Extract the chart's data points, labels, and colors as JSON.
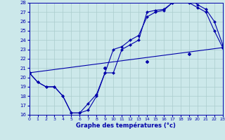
{
  "xlabel": "Graphe des températures (°c)",
  "xlim": [
    0,
    23
  ],
  "ylim": [
    16,
    28
  ],
  "xticks": [
    0,
    1,
    2,
    3,
    4,
    5,
    6,
    7,
    8,
    9,
    10,
    11,
    12,
    13,
    14,
    15,
    16,
    17,
    18,
    19,
    20,
    21,
    22,
    23
  ],
  "yticks": [
    16,
    17,
    18,
    19,
    20,
    21,
    22,
    23,
    24,
    25,
    26,
    27,
    28
  ],
  "bg_color": "#cce8ea",
  "line_color": "#0000aa",
  "grid_color": "#aacccc",
  "line1_x": [
    0,
    1,
    2,
    3,
    4,
    5,
    6,
    7,
    8,
    9,
    10,
    11,
    12,
    13,
    14,
    15,
    16,
    17,
    18,
    19,
    20,
    21,
    22,
    23
  ],
  "line1_y": [
    20.5,
    19.5,
    19.0,
    19.0,
    18.0,
    16.2,
    16.2,
    17.2,
    18.2,
    20.5,
    23.0,
    23.3,
    24.0,
    24.5,
    26.5,
    27.0,
    27.2,
    28.0,
    28.3,
    28.5,
    27.8,
    27.3,
    26.0,
    23.5
  ],
  "line2_x": [
    0,
    1,
    2,
    3,
    4,
    5,
    6,
    7,
    8,
    9,
    10,
    11,
    12,
    13,
    14,
    15,
    16,
    17,
    18,
    19,
    20,
    21,
    22,
    23
  ],
  "line2_y": [
    20.5,
    19.5,
    19.0,
    19.0,
    18.0,
    16.2,
    16.2,
    16.5,
    18.0,
    20.5,
    20.5,
    23.0,
    23.5,
    24.0,
    27.0,
    27.2,
    27.3,
    28.0,
    28.2,
    28.0,
    27.5,
    27.0,
    25.0,
    23.2
  ],
  "line3_x": [
    0,
    23
  ],
  "line3_y": [
    20.5,
    23.2
  ],
  "line3_markers_x": [
    0,
    9,
    14,
    19,
    23
  ],
  "line3_markers_y": [
    20.5,
    21.0,
    21.7,
    22.5,
    23.2
  ]
}
